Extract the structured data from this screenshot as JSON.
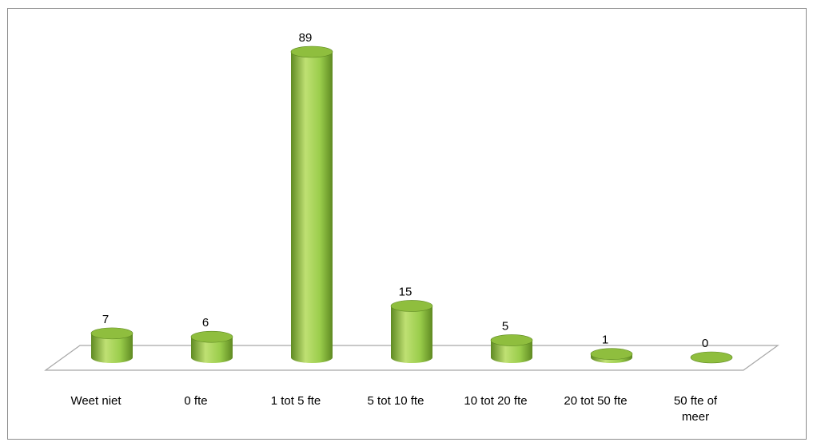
{
  "chart_data": {
    "type": "bar",
    "style": "3d-cylinder",
    "categories": [
      [
        "Weet niet"
      ],
      [
        "0 fte"
      ],
      [
        "1 tot 5 fte"
      ],
      [
        "5 tot 10 fte"
      ],
      [
        "10 tot 20 fte"
      ],
      [
        "20 tot 50 fte"
      ],
      [
        "50 fte of",
        "meer"
      ]
    ],
    "values": [
      7,
      6,
      89,
      15,
      5,
      1,
      0
    ],
    "title": "",
    "xlabel": "",
    "ylabel": "",
    "ylim": [
      0,
      89
    ],
    "grid": false,
    "legend": "none",
    "data_labels": true,
    "colors": {
      "bar_light": "#bfe073",
      "bar_mid": "#9acd4b",
      "bar_dark": "#5f8a22",
      "bar_top": "#8fbe3e",
      "floor_edge": "#a6a6a6",
      "frame": "#8c8c8c"
    }
  }
}
